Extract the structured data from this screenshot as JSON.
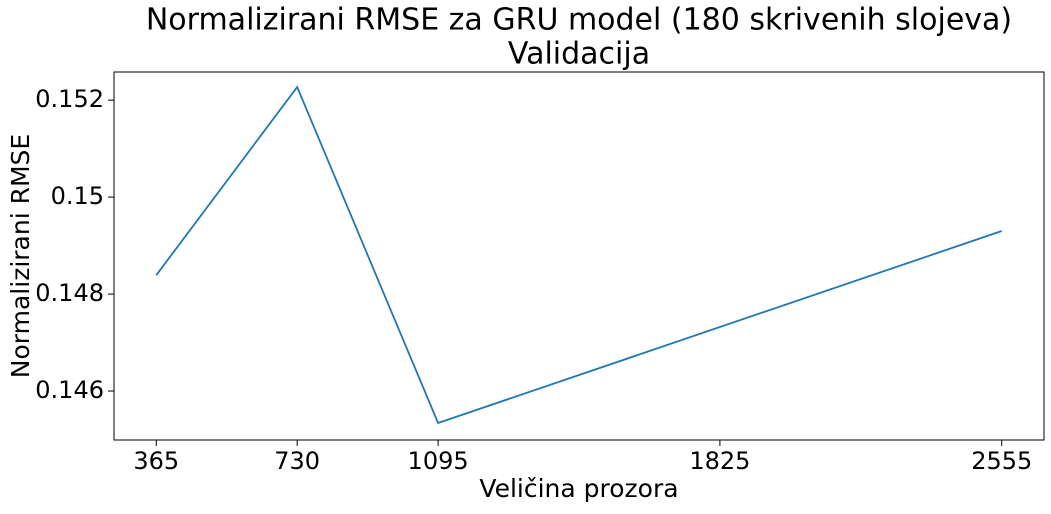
{
  "chart_data": {
    "type": "line",
    "title": [
      "Normalizirani RMSE za GRU model (180 skrivenih slojeva)",
      "Validacija"
    ],
    "xlabel": "Veličina prozora",
    "ylabel": "Normalizirani RMSE",
    "x": [
      365,
      730,
      1095,
      2555
    ],
    "series": [
      {
        "name": "Validacija",
        "color": "#1f77b4",
        "values": [
          0.14839,
          0.15227,
          0.14534,
          0.1493
        ]
      }
    ],
    "xlim": [
      255.5,
      2664.5
    ],
    "xticks": [
      365,
      730,
      1095,
      1825,
      2555
    ],
    "ylim": [
      0.14499,
      0.15258
    ],
    "yticks": [
      0.146,
      0.148,
      0.15,
      0.152
    ],
    "grid": false
  }
}
